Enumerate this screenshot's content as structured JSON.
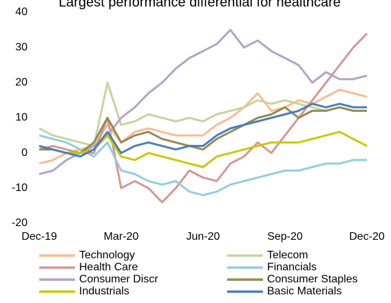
{
  "chart_data": {
    "type": "line",
    "title": "Largest performance differential for healthcare",
    "x": [
      0,
      0.5,
      1,
      1.5,
      2,
      2.5,
      3,
      3.5,
      4,
      4.5,
      5,
      5.5,
      6,
      6.5,
      7,
      7.5,
      8,
      8.5,
      9,
      9.5,
      10,
      10.5,
      11,
      11.5,
      12
    ],
    "xlim": [
      0,
      12
    ],
    "xticks": [
      {
        "value": 0,
        "label": "Dec-19"
      },
      {
        "value": 3,
        "label": "Mar-20"
      },
      {
        "value": 6,
        "label": "Jun-20"
      },
      {
        "value": 9,
        "label": "Sep-20"
      },
      {
        "value": 12,
        "label": "Dec-20"
      }
    ],
    "ylim": [
      -20,
      40
    ],
    "yticks": [
      -20,
      -10,
      0,
      10,
      20,
      30,
      40
    ],
    "grid": false,
    "legend": "bottom",
    "series": [
      {
        "name": "Technology",
        "color": "#f9bb8e",
        "values": [
          -3,
          -2,
          0,
          1,
          2,
          8,
          3,
          6,
          7,
          6,
          5,
          5,
          5,
          8,
          10,
          13,
          17,
          12,
          13,
          15,
          14,
          16,
          18,
          17,
          16
        ]
      },
      {
        "name": "Telecom",
        "color": "#c3d69b",
        "values": [
          7,
          5,
          4,
          3,
          2,
          20,
          8,
          9,
          11,
          10,
          9,
          10,
          9,
          11,
          12,
          13,
          15,
          14,
          15,
          14,
          13,
          12,
          13,
          12,
          12
        ]
      },
      {
        "name": "Health Care",
        "color": "#d99594",
        "values": [
          1,
          2,
          1,
          0,
          0,
          10,
          -10,
          -8,
          -10,
          -14,
          -10,
          -5,
          -7,
          -8,
          -3,
          -1,
          3,
          0,
          5,
          10,
          15,
          20,
          25,
          30,
          34
        ]
      },
      {
        "name": "Financials",
        "color": "#93cddd",
        "values": [
          5,
          4,
          3,
          1,
          -1,
          3,
          -5,
          -6,
          -8,
          -9,
          -8,
          -11,
          -12,
          -11,
          -9,
          -8,
          -7,
          -6,
          -5,
          -5,
          -4,
          -3,
          -3,
          -2,
          -2
        ]
      },
      {
        "name": "Consumer Discr",
        "color": "#b3a2c7",
        "values": [
          -6,
          -5,
          -2,
          0,
          2,
          5,
          10,
          13,
          17,
          20,
          24,
          27,
          29,
          31,
          35,
          30,
          32,
          29,
          27,
          25,
          20,
          23,
          21,
          21,
          22
        ]
      },
      {
        "name": "Consumer Staples",
        "color": "#948a54",
        "values": [
          1,
          1,
          0,
          0,
          3,
          10,
          3,
          5,
          6,
          4,
          3,
          2,
          1,
          4,
          6,
          8,
          10,
          11,
          13,
          10,
          12,
          12,
          13,
          12,
          12
        ]
      },
      {
        "name": "Industrials",
        "color": "#c9c800",
        "values": [
          2,
          1,
          0,
          0,
          1,
          5,
          -1,
          -2,
          0,
          -1,
          -2,
          -3,
          -4,
          -1,
          0,
          1,
          2,
          3,
          3,
          3,
          4,
          5,
          6,
          4,
          2
        ]
      },
      {
        "name": "Basic Materials",
        "color": "#4a7ebb",
        "values": [
          2,
          1,
          0,
          -1,
          1,
          6,
          0,
          2,
          3,
          2,
          1,
          2,
          2,
          5,
          7,
          8,
          9,
          10,
          11,
          12,
          14,
          13,
          14,
          13,
          13
        ]
      }
    ]
  }
}
